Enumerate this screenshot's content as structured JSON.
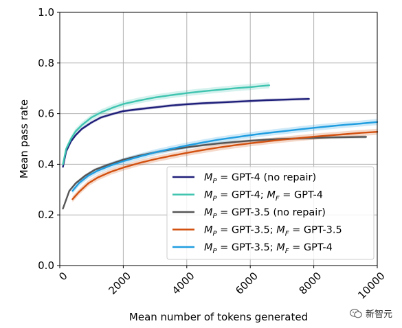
{
  "chart_data": {
    "type": "line",
    "xlabel": "Mean number of tokens generated",
    "ylabel": "Mean pass rate",
    "xlim": [
      0,
      10000
    ],
    "ylim": [
      0.0,
      1.0
    ],
    "xticks": [
      "0",
      "2000",
      "4000",
      "6000",
      "8000",
      "10000"
    ],
    "yticks": [
      "0.0",
      "0.2",
      "0.4",
      "0.6",
      "0.8",
      "1.0"
    ],
    "grid": true,
    "legend_position": "lower-right",
    "series": [
      {
        "name": "M_P = GPT-4 (no repair)",
        "legend_parts": {
          "sym": "M",
          "sub": "P",
          "eq": " =  ",
          "text": "GPT-4 (no repair)"
        },
        "color": "#1f1f7a",
        "band": 0.006,
        "x": [
          100,
          200,
          350,
          500,
          700,
          1000,
          1300,
          1700,
          2000,
          2500,
          3000,
          3500,
          4000,
          4500,
          5000,
          5500,
          6000,
          6500,
          7000,
          7500,
          7850
        ],
        "y": [
          0.39,
          0.45,
          0.49,
          0.515,
          0.54,
          0.565,
          0.585,
          0.6,
          0.61,
          0.618,
          0.625,
          0.632,
          0.637,
          0.641,
          0.644,
          0.647,
          0.65,
          0.653,
          0.655,
          0.657,
          0.658
        ]
      },
      {
        "name": "M_P = GPT-4; M_F = GPT-4",
        "legend_parts": {
          "sym": "M",
          "sub": "P",
          "eq": " =  ",
          "text": "GPT-4; ",
          "sym2": "M",
          "sub2": "F",
          "eq2": " =  ",
          "text2": "GPT-4"
        },
        "color": "#3fc4b0",
        "band": 0.012,
        "x": [
          100,
          200,
          350,
          500,
          700,
          1000,
          1300,
          1700,
          2000,
          2500,
          3000,
          3500,
          4000,
          4500,
          5000,
          5500,
          6000,
          6600
        ],
        "y": [
          0.4,
          0.46,
          0.5,
          0.53,
          0.555,
          0.585,
          0.605,
          0.625,
          0.638,
          0.652,
          0.664,
          0.673,
          0.681,
          0.688,
          0.694,
          0.7,
          0.705,
          0.712
        ]
      },
      {
        "name": "M_P = GPT-3.5 (no repair)",
        "legend_parts": {
          "sym": "M",
          "sub": "P",
          "eq": " =  ",
          "text": "GPT-3.5 (no repair)"
        },
        "color": "#555555",
        "band": 0.006,
        "x": [
          100,
          300,
          500,
          800,
          1100,
          1500,
          2000,
          2500,
          3000,
          3500,
          4000,
          4500,
          5000,
          5500,
          6000,
          6500,
          7000,
          7500,
          8000,
          8500,
          9000,
          9500,
          9650
        ],
        "y": [
          0.225,
          0.295,
          0.325,
          0.355,
          0.378,
          0.397,
          0.418,
          0.434,
          0.447,
          0.458,
          0.467,
          0.475,
          0.482,
          0.488,
          0.493,
          0.497,
          0.5,
          0.502,
          0.504,
          0.506,
          0.507,
          0.508,
          0.508
        ]
      },
      {
        "name": "M_P = GPT-3.5; M_F = GPT-3.5",
        "legend_parts": {
          "sym": "M",
          "sub": "P",
          "eq": " =  ",
          "text": "GPT-3.5; ",
          "sym2": "M",
          "sub2": "F",
          "eq2": " =  ",
          "text2": "GPT-3.5"
        },
        "color": "#d2500f",
        "band": 0.012,
        "x": [
          400,
          600,
          900,
          1200,
          1600,
          2000,
          2500,
          3000,
          3500,
          4000,
          4500,
          5000,
          5500,
          6000,
          6500,
          7000,
          7500,
          8000,
          8500,
          9000,
          9500,
          10000
        ],
        "y": [
          0.262,
          0.29,
          0.325,
          0.348,
          0.37,
          0.387,
          0.405,
          0.42,
          0.433,
          0.445,
          0.456,
          0.466,
          0.475,
          0.483,
          0.49,
          0.497,
          0.503,
          0.509,
          0.514,
          0.519,
          0.524,
          0.528
        ]
      },
      {
        "name": "M_P = GPT-3.5; M_F = GPT-4",
        "legend_parts": {
          "sym": "M",
          "sub": "P",
          "eq": " =  ",
          "text": "GPT-3.5; ",
          "sym2": "M",
          "sub2": "F",
          "eq2": " =  ",
          "text2": "GPT-4"
        },
        "color": "#1f9de0",
        "band": 0.012,
        "x": [
          400,
          600,
          900,
          1200,
          1600,
          2000,
          2500,
          3000,
          3500,
          4000,
          4500,
          5000,
          5500,
          6000,
          6500,
          7000,
          7500,
          8000,
          8500,
          9000,
          9500,
          10000
        ],
        "y": [
          0.295,
          0.325,
          0.355,
          0.375,
          0.395,
          0.412,
          0.43,
          0.447,
          0.461,
          0.474,
          0.486,
          0.497,
          0.506,
          0.515,
          0.523,
          0.53,
          0.537,
          0.544,
          0.55,
          0.556,
          0.561,
          0.567
        ]
      }
    ]
  },
  "watermark": {
    "icon": "wechat-icon",
    "text": "新智元"
  }
}
